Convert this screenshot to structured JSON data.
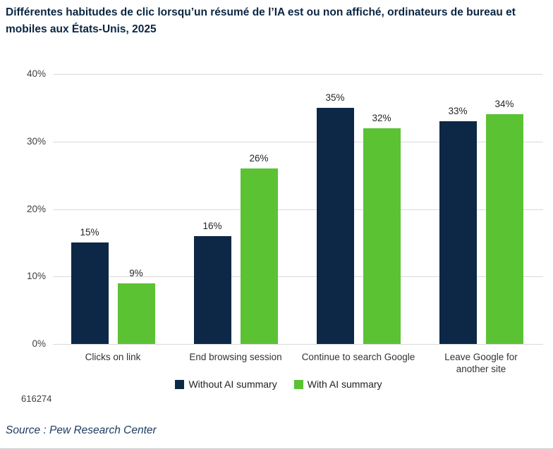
{
  "title": {
    "line1": "Différentes habitudes de clic lorsqu’un résumé de l’IA est ou non affiché, ordinateurs de bureau et",
    "line2": "mobiles aux États-Unis, 2025"
  },
  "figure_id": "616274",
  "source": "Source : Pew Research Center",
  "colors": {
    "title_text": "#0a2642",
    "navy_series": "#0d2847",
    "green_series": "#5bc234",
    "gridline": "#d9d9d9",
    "axis_text": "#404040",
    "value_text": "#262626",
    "source_text": "#1d3c60"
  },
  "chart_data": {
    "type": "bar",
    "title": "Différentes habitudes de clic lorsqu’un résumé de l’IA est ou non affiché, ordinateurs de bureau et mobiles aux États-Unis, 2025",
    "categories": [
      "Clicks on link",
      "End browsing session",
      "Continue to search Google",
      "Leave Google for another site"
    ],
    "series": [
      {
        "name": "Without AI summary",
        "color": "#0d2847",
        "values": [
          15,
          16,
          35,
          33
        ]
      },
      {
        "name": "With AI summary",
        "color": "#5bc234",
        "values": [
          9,
          26,
          32,
          34
        ]
      }
    ],
    "value_labels": [
      [
        "15%",
        "16%",
        "35%",
        "33%"
      ],
      [
        "9%",
        "26%",
        "32%",
        "34%"
      ]
    ],
    "value_suffix": "%",
    "xlabel": "",
    "ylabel": "",
    "ylim": [
      0,
      40
    ],
    "yticks": [
      0,
      10,
      20,
      30,
      40
    ],
    "ytick_labels": [
      "0%",
      "10%",
      "20%",
      "30%",
      "40%"
    ],
    "grid": true,
    "legend_position": "bottom"
  }
}
